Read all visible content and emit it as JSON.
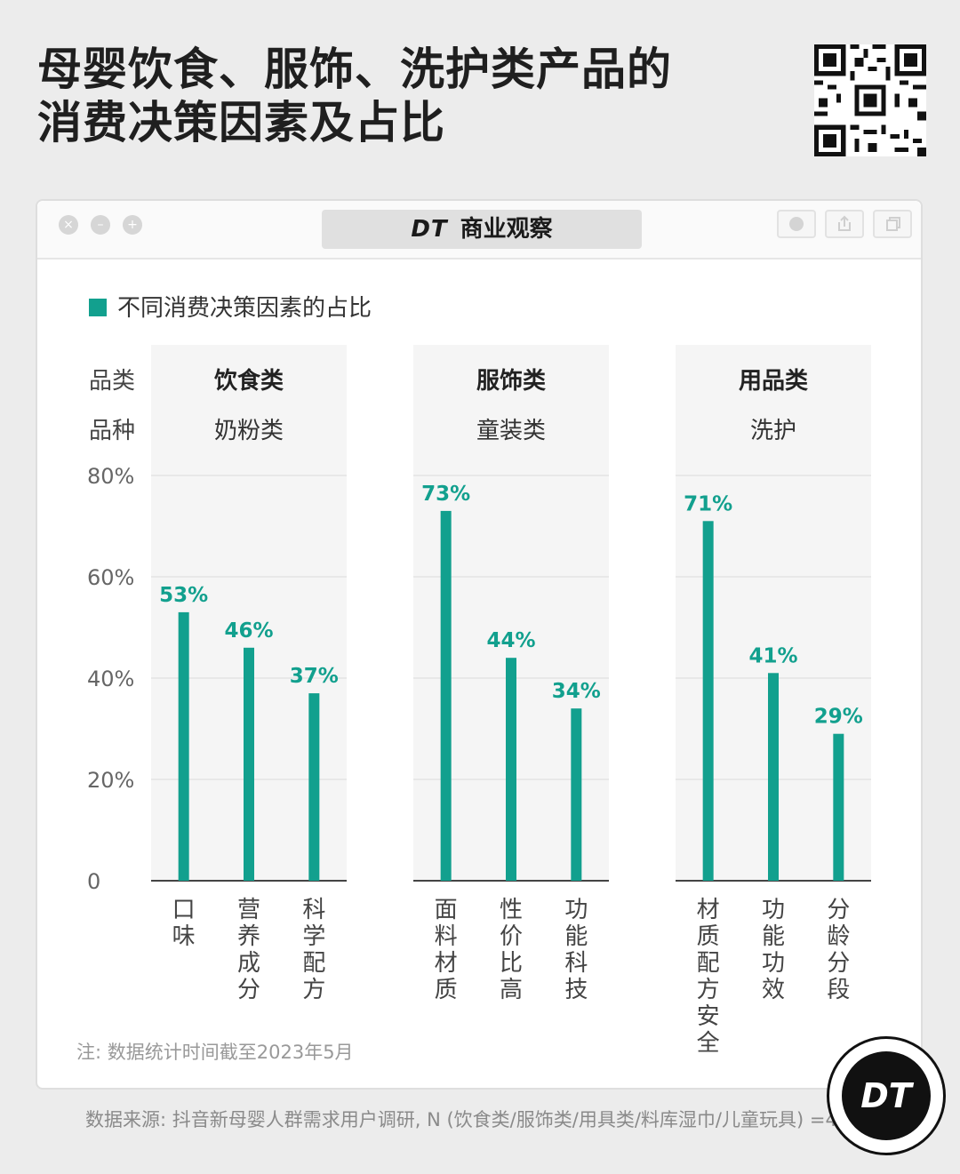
{
  "title": {
    "line1": "母婴饮食、服饰、洗护类产品的",
    "line2": "消费决策因素及占比"
  },
  "browser": {
    "address": "商业观察",
    "brand_mark": "DT",
    "window_controls": [
      "close-icon",
      "minimize-icon",
      "maximize-icon"
    ],
    "tool_icons": [
      "circle-icon",
      "share-icon",
      "copy-icon"
    ]
  },
  "chart_data": {
    "type": "bar",
    "legend": "不同消费决策因素的占比",
    "accent_color": "#12a08e",
    "row_labels": {
      "category": "品类",
      "variety": "品种"
    },
    "ylim": [
      0,
      80
    ],
    "yticks": [
      0,
      20,
      40,
      60,
      80
    ],
    "ytick_labels": [
      "0",
      "20%",
      "40%",
      "60%",
      "80%"
    ],
    "groups": [
      {
        "category": "饮食类",
        "variety": "奶粉类",
        "bars": [
          {
            "label": "口味",
            "value": 53,
            "value_label": "53%"
          },
          {
            "label": "营养成分",
            "value": 46,
            "value_label": "46%"
          },
          {
            "label": "科学配方",
            "value": 37,
            "value_label": "37%"
          }
        ]
      },
      {
        "category": "服饰类",
        "variety": "童装类",
        "bars": [
          {
            "label": "面料材质",
            "value": 73,
            "value_label": "73%"
          },
          {
            "label": "性价比高",
            "value": 44,
            "value_label": "44%"
          },
          {
            "label": "功能科技",
            "value": 34,
            "value_label": "34%"
          }
        ]
      },
      {
        "category": "用品类",
        "variety": "洗护",
        "bars": [
          {
            "label": "材质配方安全",
            "value": 71,
            "value_label": "71%"
          },
          {
            "label": "功能功效",
            "value": 41,
            "value_label": "41%"
          },
          {
            "label": "分龄分段",
            "value": 29,
            "value_label": "29%"
          }
        ]
      }
    ]
  },
  "footer": {
    "note": "注: 数据统计时间截至2023年5月",
    "source": "数据来源: 抖音新母婴人群需求用户调研, N (饮食类/服饰类/用具类/料库湿巾/儿童玩具) =4602",
    "logo": "DT"
  }
}
